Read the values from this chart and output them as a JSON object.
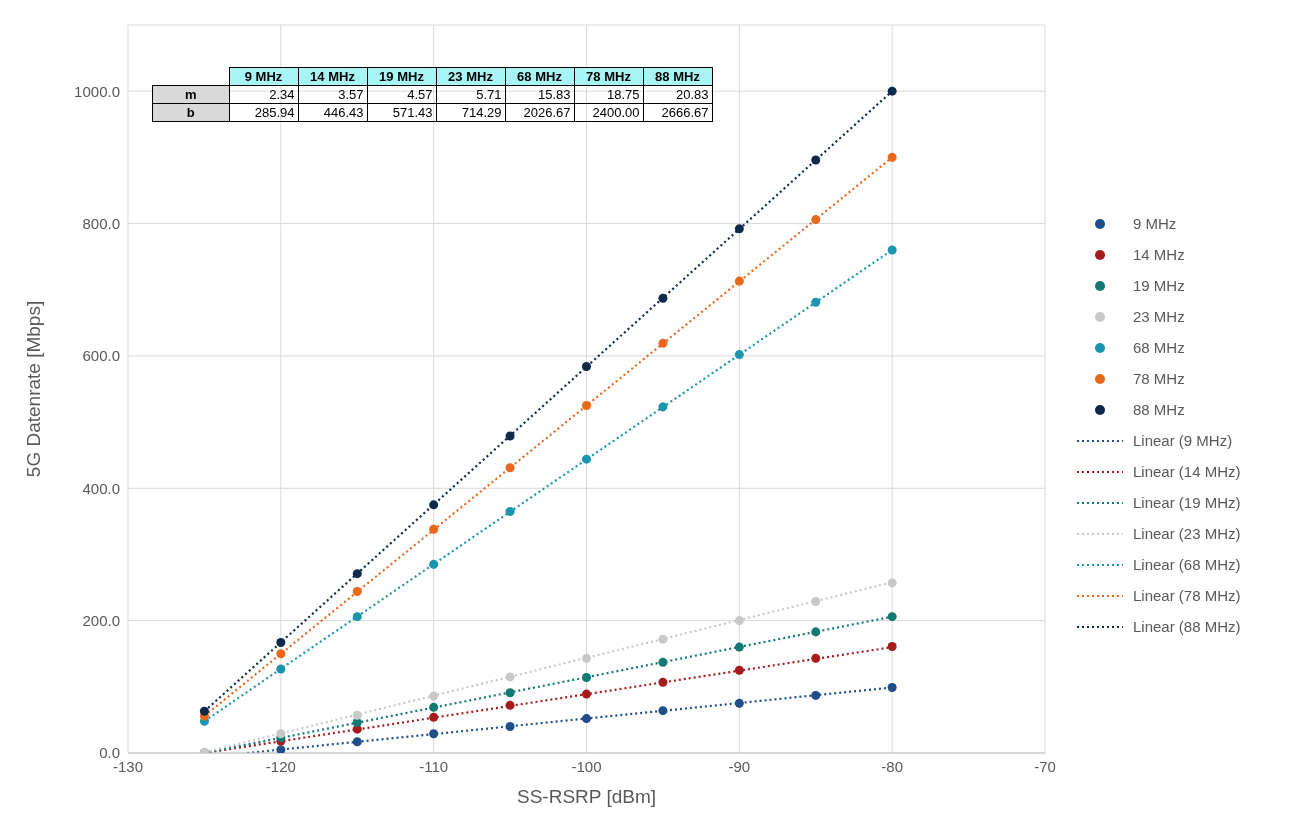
{
  "chart_data": {
    "type": "scatter",
    "xlabel": "SS-RSRP [dBm]",
    "ylabel": "5G Datenrate [Mbps]",
    "xlim": [
      -130,
      -70
    ],
    "xticks": [
      -130,
      -120,
      -110,
      -100,
      -90,
      -80,
      -70
    ],
    "ylim": [
      0,
      1100
    ],
    "yticks": [
      {
        "value": 0,
        "label": "0.0"
      },
      {
        "value": 200,
        "label": "200.0"
      },
      {
        "value": 400,
        "label": "400.0"
      },
      {
        "value": 600,
        "label": "600.0"
      },
      {
        "value": 800,
        "label": "800.0"
      },
      {
        "value": 1000,
        "label": "1000.0"
      }
    ],
    "grid": true,
    "legend": "right",
    "x": [
      -125,
      -120,
      -115,
      -110,
      -105,
      -100,
      -95,
      -90,
      -85,
      -80
    ],
    "series": [
      {
        "name": "9 MHz",
        "marker": "circle",
        "color": "#1f4e89",
        "values": [
          null,
          5,
          17,
          29,
          40,
          52,
          64,
          75,
          87,
          99
        ]
      },
      {
        "name": "14 MHz",
        "marker": "circle",
        "color": "#a51c1c",
        "values": [
          0,
          18,
          36,
          54,
          72,
          89,
          107,
          125,
          143,
          161
        ]
      },
      {
        "name": "19 MHz",
        "marker": "circle",
        "color": "#127a73",
        "values": [
          0,
          23,
          46,
          69,
          91,
          114,
          137,
          160,
          183,
          206
        ]
      },
      {
        "name": "23 MHz",
        "marker": "circle",
        "color": "#c8c8c8",
        "values": [
          1,
          29,
          57,
          86,
          115,
          143,
          172,
          200,
          229,
          257
        ]
      },
      {
        "name": "68 MHz",
        "marker": "circle",
        "color": "#1b95ad",
        "values": [
          48,
          127,
          206,
          285,
          365,
          444,
          523,
          602,
          681,
          760
        ]
      },
      {
        "name": "78 MHz",
        "marker": "circle",
        "color": "#e8681c",
        "values": [
          56,
          150,
          244,
          338,
          431,
          525,
          619,
          713,
          806,
          900
        ]
      },
      {
        "name": "88 MHz",
        "marker": "circle",
        "color": "#0d2a4a",
        "values": [
          63,
          167,
          271,
          375,
          479,
          584,
          687,
          792,
          896,
          1000
        ]
      },
      {
        "name": "Linear (9 MHz)",
        "type": "line",
        "marker": "none",
        "line_style": "dotted",
        "color": "#1f4e89",
        "x": [
          -122.2,
          -80
        ],
        "values": [
          0,
          99
        ]
      },
      {
        "name": "Linear (14 MHz)",
        "type": "line",
        "marker": "none",
        "line_style": "dotted",
        "color": "#a51c1c",
        "x": [
          -125,
          -80
        ],
        "values": [
          0,
          160
        ]
      },
      {
        "name": "Linear (19 MHz)",
        "type": "line",
        "marker": "none",
        "line_style": "dotted",
        "color": "#127a73",
        "x": [
          -125,
          -80
        ],
        "values": [
          0,
          206
        ]
      },
      {
        "name": "Linear (23 MHz)",
        "type": "line",
        "marker": "none",
        "line_style": "dotted",
        "color": "#c8c8c8",
        "x": [
          -125,
          -80
        ],
        "values": [
          1,
          258
        ]
      },
      {
        "name": "Linear (68 MHz)",
        "type": "line",
        "marker": "none",
        "line_style": "dotted",
        "color": "#1b95ad",
        "x": [
          -125,
          -80
        ],
        "values": [
          48,
          760
        ]
      },
      {
        "name": "Linear (78 MHz)",
        "type": "line",
        "marker": "none",
        "line_style": "dotted",
        "color": "#e8681c",
        "x": [
          -125,
          -80
        ],
        "values": [
          56,
          900
        ]
      },
      {
        "name": "Linear (88 MHz)",
        "type": "line",
        "marker": "none",
        "line_style": "dotted",
        "color": "#0d2a4a",
        "x": [
          -125,
          -80
        ],
        "values": [
          63,
          1000
        ]
      }
    ],
    "annotations": [
      "m",
      "2.34",
      "3.57",
      "4.57",
      "5.71",
      "15.83",
      "18.75",
      "20.83",
      "b",
      "285.94",
      "446.43",
      "571.43",
      "714.29",
      "2026.67",
      "2400.00",
      "2666.67"
    ]
  }
}
